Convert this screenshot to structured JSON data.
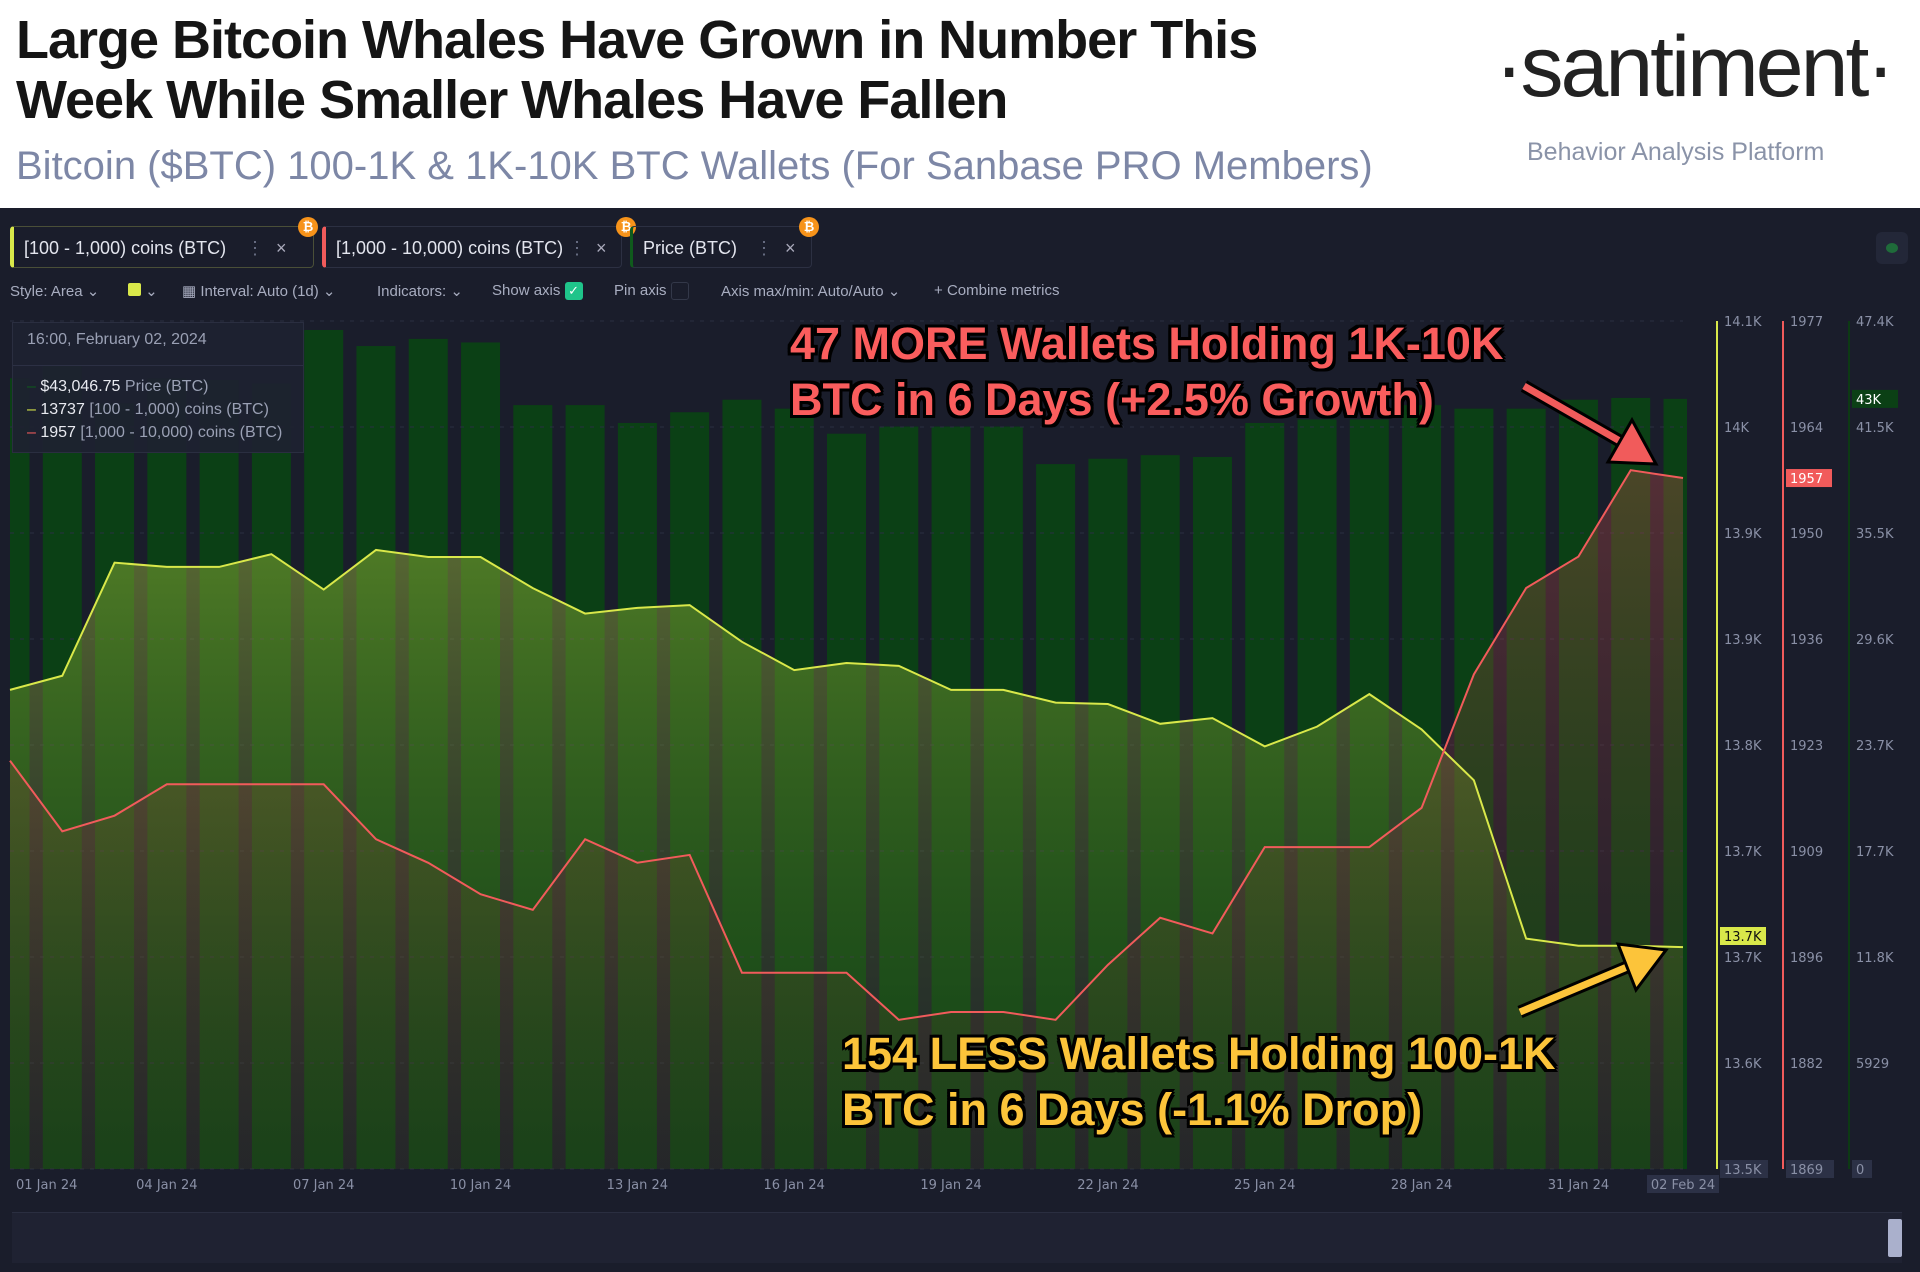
{
  "header": {
    "title_line1": "Large Bitcoin Whales Have Grown in Number This",
    "title_line2": "Week While Smaller Whales Have Fallen",
    "subtitle": "Bitcoin ($BTC) 100-1K & 1K-10K BTC Wallets (For Sanbase PRO Members)",
    "logo": "·santiment·",
    "tagline": "Behavior Analysis Platform"
  },
  "tabs": [
    {
      "label": "[100 - 1,000) coins (BTC)",
      "color": "#d9e84a",
      "icon": "bitcoin-icon"
    },
    {
      "label": "[1,000 - 10,000) coins (BTC)",
      "color": "#f15b5b",
      "icon": "bitcoin-icon"
    },
    {
      "label": "Price (BTC)",
      "color": "#0f5a1c",
      "icon": "bitcoin-icon"
    }
  ],
  "toolbar": {
    "style": "Style: Area",
    "interval": "Interval: Auto (1d)",
    "indicators": "Indicators:",
    "show_axis": "Show axis",
    "show_axis_checked": true,
    "pin_axis": "Pin axis",
    "pin_axis_checked": false,
    "axis_maxmin": "Axis max/min: Auto/Auto",
    "combine": "Combine metrics"
  },
  "tooltip": {
    "date": "16:00, February 02, 2024",
    "rows": [
      {
        "value": "$43,046.75",
        "label": "Price (BTC)",
        "color": "#0f5a1c"
      },
      {
        "value": "13737",
        "label": "[100 - 1,000) coins (BTC)",
        "color": "#d9e84a"
      },
      {
        "value": "1957",
        "label": "[1,000 - 10,000) coins (BTC)",
        "color": "#f15b5b"
      }
    ]
  },
  "annotations": {
    "red_line1": "47 MORE Wallets Holding 1K-10K",
    "red_line2": "BTC in 6 Days (+2.5% Growth)",
    "yellow_line1": "154 LESS Wallets Holding 100-1K",
    "yellow_line2": "BTC in 6 Days (-1.1% Drop)"
  },
  "chart_data": {
    "type": "line",
    "x": [
      "2024-01-01",
      "2024-01-02",
      "2024-01-03",
      "2024-01-04",
      "2024-01-05",
      "2024-01-06",
      "2024-01-07",
      "2024-01-08",
      "2024-01-09",
      "2024-01-10",
      "2024-01-11",
      "2024-01-12",
      "2024-01-13",
      "2024-01-14",
      "2024-01-15",
      "2024-01-16",
      "2024-01-17",
      "2024-01-18",
      "2024-01-19",
      "2024-01-20",
      "2024-01-21",
      "2024-01-22",
      "2024-01-23",
      "2024-01-24",
      "2024-01-25",
      "2024-01-26",
      "2024-01-27",
      "2024-01-28",
      "2024-01-29",
      "2024-01-30",
      "2024-01-31",
      "2024-02-01",
      "2024-02-02"
    ],
    "x_tick_labels": [
      "01 Jan 24",
      "04 Jan 24",
      "07 Jan 24",
      "10 Jan 24",
      "13 Jan 24",
      "16 Jan 24",
      "19 Jan 24",
      "22 Jan 24",
      "25 Jan 24",
      "28 Jan 24",
      "31 Jan 24",
      "02 Feb 24"
    ],
    "series": [
      {
        "name": "[100 - 1,000) coins (BTC)",
        "style": "area",
        "color": "#d9e84a",
        "values": [
          13919,
          13929,
          14009,
          14006,
          14006,
          14015,
          13990,
          14018,
          14013,
          14013,
          13991,
          13973,
          13977,
          13979,
          13953,
          13933,
          13938,
          13936,
          13919,
          13919,
          13910,
          13909,
          13895,
          13899,
          13879,
          13893,
          13916,
          13891,
          13855,
          13743,
          13738,
          13738,
          13737
        ],
        "ylim": [
          13580,
          14180
        ],
        "axis_labels": [
          "14.1K",
          "14K",
          "13.9K",
          "13.9K",
          "13.8K",
          "13.7K",
          "13.7K",
          "13.6K",
          "13.5K"
        ],
        "current_label": "13.7K"
      },
      {
        "name": "[1,000 - 10,000) coins (BTC)",
        "style": "area",
        "color": "#f15b5b",
        "values": [
          1921,
          1912,
          1914,
          1918,
          1918,
          1918,
          1918,
          1911,
          1908,
          1904,
          1902,
          1911,
          1908,
          1909,
          1894,
          1894,
          1894,
          1888,
          1889,
          1889,
          1888,
          1895,
          1901,
          1899,
          1910,
          1910,
          1910,
          1915,
          1932,
          1943,
          1947,
          1958,
          1957
        ],
        "ylim": [
          1869,
          1977
        ],
        "axis_labels": [
          "1977",
          "1964",
          "1950",
          "1936",
          "1923",
          "1909",
          "1896",
          "1882",
          "1869"
        ],
        "current_label": "1957"
      },
      {
        "name": "Price (BTC)",
        "style": "bar",
        "color": "#0b4015",
        "values": [
          44200,
          44900,
          42800,
          44200,
          44100,
          43900,
          46900,
          46000,
          46400,
          46200,
          42700,
          42700,
          41700,
          42300,
          43000,
          42500,
          41100,
          41500,
          41500,
          41500,
          39400,
          39700,
          39900,
          39800,
          41700,
          41900,
          41900,
          42700,
          42500,
          42500,
          43000,
          43100,
          43046.75
        ],
        "ylim": [
          0,
          47400
        ],
        "axis_labels": [
          "47.4K",
          "41.5K",
          "35.5K",
          "29.6K",
          "23.7K",
          "17.7K",
          "11.8K",
          "5929",
          "0"
        ],
        "current_label": "43K"
      }
    ],
    "grid": true,
    "legend": "top-left"
  }
}
